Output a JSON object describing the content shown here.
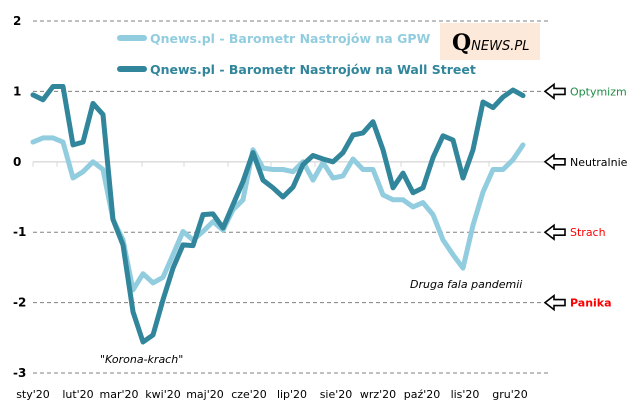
{
  "chart_data": {
    "type": "line",
    "title": "",
    "xlabel": "",
    "ylabel": "",
    "ylim": [
      -3,
      2
    ],
    "yticks": [
      2,
      1,
      0,
      -1,
      -2,
      -3
    ],
    "ytick_labels": [
      "2",
      "1",
      "0",
      "-1",
      "-2",
      "-3"
    ],
    "x_tick_labels": [
      "sty'20",
      "lut'20",
      "mar'20",
      "kwi'20",
      "maj'20",
      "cze'20",
      "lip'20",
      "sie'20",
      "wrz'20",
      "paź'20",
      "lis'20",
      "gru'20"
    ],
    "x_count": 50,
    "grid": "dashed horizontal at 2, 1, -1, -2, -3; solid zero line",
    "legend": "top-center",
    "series": [
      {
        "name": "Qnews.pl - Barometr Nastrojów na GPW",
        "color": "#92cddf",
        "values": [
          0.28,
          0.34,
          0.34,
          0.28,
          -0.23,
          -0.14,
          0.0,
          -0.11,
          -0.82,
          -1.11,
          -1.82,
          -1.59,
          -1.72,
          -1.64,
          -1.32,
          -0.99,
          -1.11,
          -0.99,
          -0.85,
          -0.97,
          -0.68,
          -0.54,
          0.17,
          -0.09,
          -0.11,
          -0.11,
          -0.14,
          0.0,
          -0.26,
          -0.01,
          -0.23,
          -0.2,
          0.04,
          -0.11,
          -0.11,
          -0.47,
          -0.54,
          -0.54,
          -0.64,
          -0.58,
          -0.75,
          -1.11,
          -1.32,
          -1.51,
          -0.9,
          -0.43,
          -0.11,
          -0.11,
          0.03,
          0.24
        ]
      },
      {
        "name": "Qnews.pl - Barometr Nastrojów na Wall Street",
        "color": "#31869b",
        "values": [
          0.95,
          0.88,
          1.07,
          1.07,
          0.24,
          0.28,
          0.83,
          0.67,
          -0.82,
          -1.18,
          -2.13,
          -2.56,
          -2.46,
          -1.96,
          -1.51,
          -1.18,
          -1.19,
          -0.75,
          -0.74,
          -0.94,
          -0.61,
          -0.28,
          0.13,
          -0.26,
          -0.37,
          -0.5,
          -0.36,
          -0.04,
          0.09,
          0.04,
          0.0,
          0.13,
          0.38,
          0.41,
          0.57,
          0.17,
          -0.37,
          -0.16,
          -0.44,
          -0.37,
          0.06,
          0.37,
          0.31,
          -0.23,
          0.17,
          0.85,
          0.77,
          0.92,
          1.02,
          0.94
        ]
      }
    ],
    "annotations": [
      {
        "text": "\"Korona-krach\"",
        "near": "kwi'20 minimum"
      },
      {
        "text": "Druga fala pandemii",
        "near": "lis'20 GPW minimum"
      }
    ],
    "levels": [
      {
        "label": "Optymizm",
        "value": 1,
        "color": "#1e8c45"
      },
      {
        "label": "Neutralnie",
        "value": 0,
        "color": "#000000"
      },
      {
        "label": "Strach",
        "value": -1,
        "color": "#ff0000"
      },
      {
        "label": "Panika",
        "value": -2,
        "color": "#ff0000",
        "bold": true
      }
    ]
  },
  "logo": {
    "q": "Q",
    "rest": "NEWS.PL",
    "background": "#fde9d9"
  },
  "colors": {
    "gpw": "#92cddf",
    "wallstreet": "#31869b",
    "grid": "#808080",
    "zero": "#d9d9d9"
  }
}
